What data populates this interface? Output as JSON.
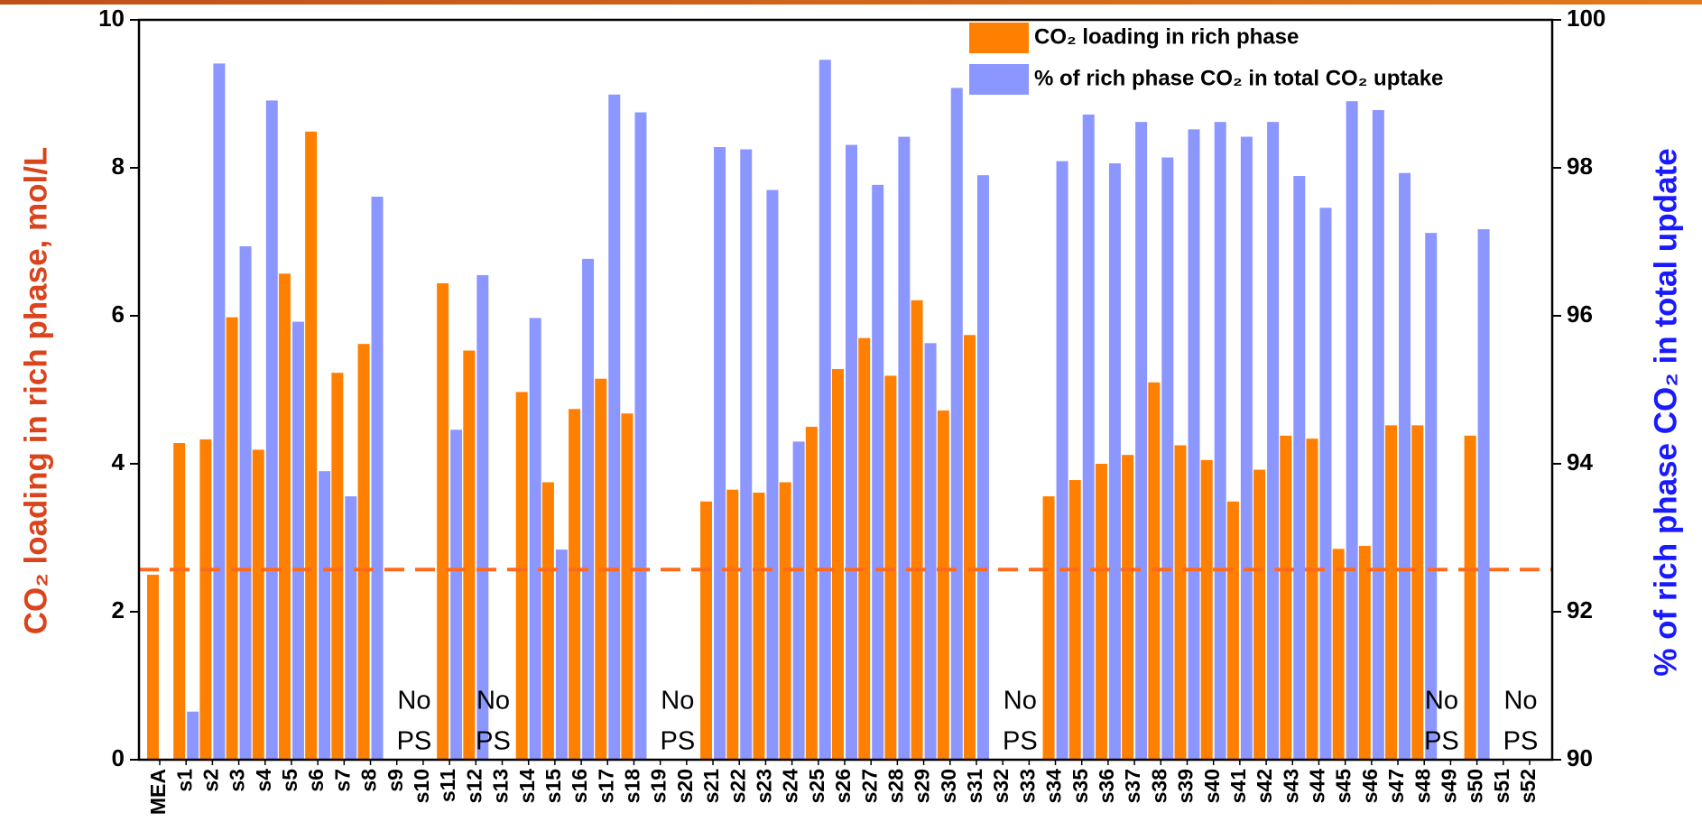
{
  "chart_data": {
    "type": "bar",
    "ylabel": "CO₂ loading in rich phase, mol/L",
    "y2label": "% of rich phase CO₂ in total update",
    "categories": [
      "MEA",
      "s1",
      "s2",
      "s3",
      "s4",
      "s5",
      "s6",
      "s7",
      "s8",
      "s9",
      "s10",
      "s11",
      "s12",
      "s13",
      "s14",
      "s15",
      "s16",
      "s17",
      "s18",
      "s19",
      "s20",
      "s21",
      "s22",
      "s23",
      "s24",
      "s25",
      "s26",
      "s27",
      "s28",
      "s29",
      "s30",
      "s31",
      "s32",
      "s33",
      "s34",
      "s35",
      "s36",
      "s37",
      "s38",
      "s39",
      "s40",
      "s41",
      "s42",
      "s43",
      "s44",
      "s45",
      "s46",
      "s47",
      "s48",
      "s49",
      "s50",
      "s51",
      "s52"
    ],
    "series": [
      {
        "name": "CO₂ loading in rich phase",
        "color": "#ff8000",
        "axis": "y",
        "values": [
          2.5,
          4.28,
          4.33,
          5.98,
          4.19,
          6.57,
          8.49,
          5.23,
          5.62,
          null,
          null,
          6.44,
          5.53,
          null,
          4.97,
          3.75,
          4.74,
          5.15,
          4.68,
          null,
          null,
          3.49,
          3.65,
          3.61,
          3.75,
          4.5,
          5.28,
          5.7,
          5.19,
          6.21,
          4.72,
          5.74,
          null,
          null,
          3.56,
          3.78,
          4.0,
          4.12,
          5.1,
          4.25,
          4.05,
          3.49,
          3.92,
          4.38,
          4.34,
          2.85,
          2.89,
          4.52,
          4.52,
          null,
          4.38,
          null,
          null
        ]
      },
      {
        "name": "% of rich phase CO₂ in total CO₂ uptake",
        "color": "#8c96ff",
        "axis": "y2",
        "values": [
          null,
          90.65,
          99.41,
          96.94,
          98.91,
          95.92,
          93.9,
          93.56,
          97.61,
          null,
          null,
          94.46,
          96.55,
          null,
          95.97,
          92.84,
          96.77,
          98.99,
          98.75,
          null,
          null,
          98.28,
          98.25,
          97.7,
          94.3,
          99.46,
          98.31,
          97.77,
          98.42,
          95.63,
          99.08,
          97.9,
          null,
          null,
          98.09,
          98.72,
          98.06,
          98.62,
          98.14,
          98.52,
          98.62,
          98.42,
          98.62,
          97.89,
          97.46,
          98.9,
          98.78,
          97.93,
          97.12,
          null,
          97.17,
          null,
          null
        ]
      }
    ],
    "ylim": [
      0,
      10
    ],
    "yticks": [
      0,
      2,
      4,
      6,
      8,
      10
    ],
    "y2lim": [
      90,
      100
    ],
    "y2ticks": [
      90,
      92,
      94,
      96,
      98,
      100
    ],
    "reference_line": {
      "y": 2.57,
      "color": "#ff6a1a"
    },
    "annotations": [
      {
        "category": "s10",
        "lines": [
          "No",
          "PS"
        ]
      },
      {
        "category": "s13",
        "lines": [
          "No",
          "PS"
        ]
      },
      {
        "category": "s20",
        "lines": [
          "No",
          "PS"
        ]
      },
      {
        "category": "s33",
        "lines": [
          "No",
          "PS"
        ]
      },
      {
        "category": "s49",
        "lines": [
          "No",
          "PS"
        ]
      },
      {
        "category": "s52",
        "lines": [
          "No",
          "PS"
        ]
      }
    ],
    "legend": "top-right"
  }
}
